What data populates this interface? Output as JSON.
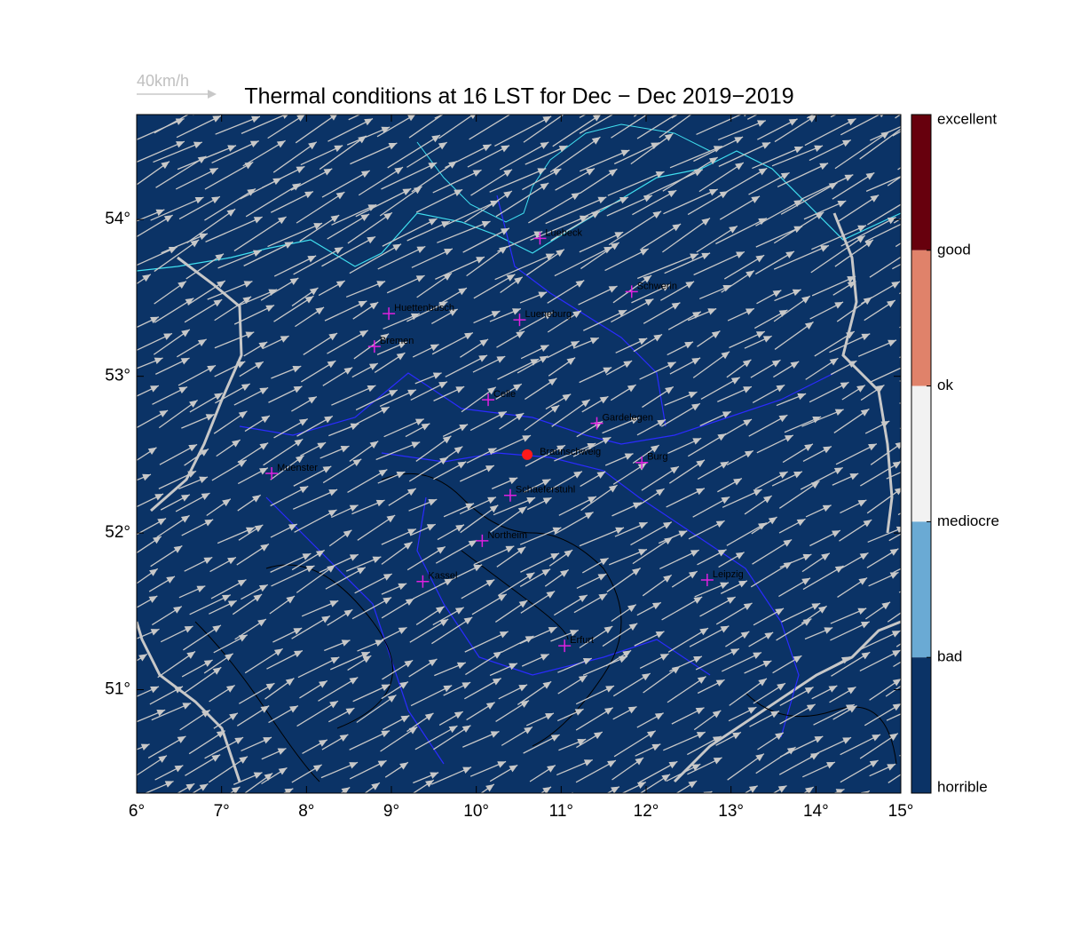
{
  "title": "Thermal conditions at 16 LST for Dec − Dec  2019−2019",
  "wind_scale_label": "40km/h",
  "map": {
    "xlim": [
      6,
      15
    ],
    "ylim": [
      50.34,
      54.67
    ],
    "xticks": [
      {
        "value": 6,
        "label": "6°"
      },
      {
        "value": 7,
        "label": "7°"
      },
      {
        "value": 8,
        "label": "8°"
      },
      {
        "value": 9,
        "label": "9°"
      },
      {
        "value": 10,
        "label": "10°"
      },
      {
        "value": 11,
        "label": "11°"
      },
      {
        "value": 12,
        "label": "12°"
      },
      {
        "value": 13,
        "label": "13°"
      },
      {
        "value": 14,
        "label": "14°"
      },
      {
        "value": 15,
        "label": "15°"
      }
    ],
    "yticks": [
      {
        "value": 51,
        "label": "51°"
      },
      {
        "value": 52,
        "label": "52°"
      },
      {
        "value": 53,
        "label": "53°"
      },
      {
        "value": 54,
        "label": "54°"
      }
    ]
  },
  "places": [
    {
      "name": "Luebeck",
      "lon": 10.75,
      "lat": 53.88
    },
    {
      "name": "Schwerin",
      "lon": 11.83,
      "lat": 53.54
    },
    {
      "name": "Huettenbusch",
      "lon": 8.97,
      "lat": 53.4
    },
    {
      "name": "Lueneburg",
      "lon": 10.51,
      "lat": 53.36
    },
    {
      "name": "Bremen",
      "lon": 8.8,
      "lat": 53.19
    },
    {
      "name": "Celle",
      "lon": 10.14,
      "lat": 52.85
    },
    {
      "name": "Gardelegen",
      "lon": 11.42,
      "lat": 52.7
    },
    {
      "name": "Burg",
      "lon": 11.95,
      "lat": 52.45
    },
    {
      "name": "Muenster",
      "lon": 7.59,
      "lat": 52.38
    },
    {
      "name": "Schaeferstuhl",
      "lon": 10.4,
      "lat": 52.24
    },
    {
      "name": "Northeim",
      "lon": 10.07,
      "lat": 51.95
    },
    {
      "name": "Kassel",
      "lon": 9.37,
      "lat": 51.69
    },
    {
      "name": "Leipzig",
      "lon": 12.72,
      "lat": 51.7
    },
    {
      "name": "Erfurt",
      "lon": 11.04,
      "lat": 51.28
    }
  ],
  "site": {
    "name": "Braunschweig",
    "lon": 10.6,
    "lat": 52.5
  },
  "colorbar": {
    "labels": [
      "excellent",
      "good",
      "ok",
      "mediocre",
      "bad",
      "horrible"
    ],
    "colors": [
      "#67000d",
      "#e0826a",
      "#f2f2f2",
      "#6aaad4",
      "#0b3366"
    ]
  }
}
